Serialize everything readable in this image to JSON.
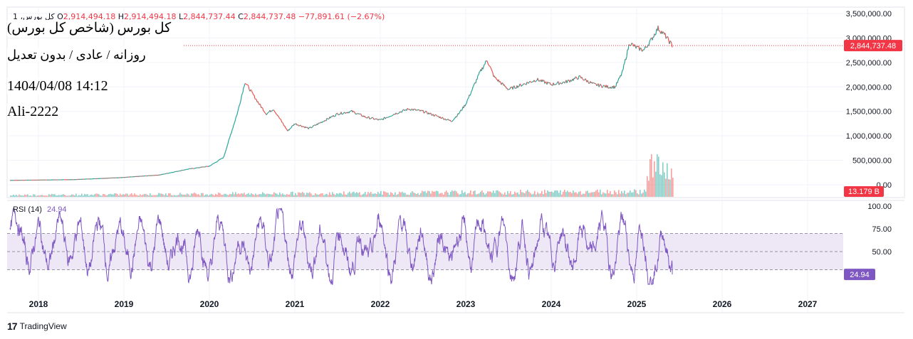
{
  "header": {
    "symbol_line": "کل بورس، 1",
    "o_label": "O",
    "o_value": "2,914,494.18",
    "h_label": "H",
    "h_value": "2,914,494.18",
    "l_label": "L",
    "l_value": "2,844,737.44",
    "c_label": "C",
    "c_value": "2,844,737.48",
    "change": "−77,891.61 (−2.67%)"
  },
  "overlay": {
    "title": "کل بورس (شاخص کل بورس)",
    "subtitle": "روزانه / عادی / بدون تعدیل",
    "datetime": "1404/04/08 14:12",
    "author": "Ali-2222"
  },
  "colors": {
    "up": "#26a69a",
    "down": "#ef5350",
    "rsi_line": "#7e57c2",
    "rsi_band": "#ede7f6",
    "price_tag": "#f23645",
    "grid": "#f0f3fa"
  },
  "chart_data": [
    {
      "type": "candlestick",
      "title": "",
      "y_axis_ticks": [
        "3,500,000.00",
        "3,000,000.00",
        "2,500,000.00",
        "2,000,000.00",
        "1,500,000.00",
        "1,000,000.00",
        "500,000.00",
        "0.00"
      ],
      "ylim": [
        0,
        3500000
      ],
      "x_axis_ticks": [
        "2018",
        "2019",
        "2020",
        "2021",
        "2022",
        "2023",
        "2024",
        "2025",
        "2026",
        "2027"
      ],
      "last_price_label": "2,844,737.48",
      "volume_label": "13.179 B",
      "approx_series": {
        "dates": [
          "2017-09",
          "2018-06",
          "2019-01",
          "2019-06",
          "2019-10",
          "2020-01",
          "2020-03",
          "2020-05",
          "2020-06",
          "2020-08",
          "2020-09",
          "2020-10",
          "2020-12",
          "2021-01",
          "2021-03",
          "2021-05",
          "2021-07",
          "2021-09",
          "2021-11",
          "2022-01",
          "2022-03",
          "2022-05",
          "2022-07",
          "2022-09",
          "2022-11",
          "2022-12",
          "2023-01",
          "2023-03",
          "2023-04",
          "2023-05",
          "2023-07",
          "2023-09",
          "2023-11",
          "2024-01",
          "2024-03",
          "2024-05",
          "2024-07",
          "2024-09",
          "2024-10",
          "2024-11",
          "2024-12",
          "2025-01",
          "2025-02",
          "2025-03",
          "2025-04",
          "2025-05",
          "2025-06"
        ],
        "close": [
          90000,
          105000,
          150000,
          200000,
          320000,
          380000,
          560000,
          1500000,
          2100000,
          1650000,
          1450000,
          1550000,
          1100000,
          1250000,
          1150000,
          1300000,
          1450000,
          1500000,
          1380000,
          1320000,
          1450000,
          1550000,
          1500000,
          1400000,
          1300000,
          1450000,
          1650000,
          2300000,
          2550000,
          2200000,
          1950000,
          2050000,
          2150000,
          2050000,
          2100000,
          2200000,
          2050000,
          2000000,
          2000000,
          2300000,
          2900000,
          2800000,
          2750000,
          2950000,
          3200000,
          3050000,
          2844737
        ]
      }
    },
    {
      "type": "line",
      "title": "",
      "series": [
        {
          "name": "RSI (14)",
          "last_value": "24.94"
        }
      ],
      "y_axis_ticks": [
        "100.00",
        "75.00",
        "50.00"
      ],
      "ylim": [
        0,
        100
      ],
      "bands": [
        30,
        50,
        70
      ],
      "last_value_label": "24.94"
    }
  ],
  "rsi": {
    "label": "RSI (14)",
    "value": "24.94"
  },
  "brand": {
    "name": "TradingView"
  }
}
